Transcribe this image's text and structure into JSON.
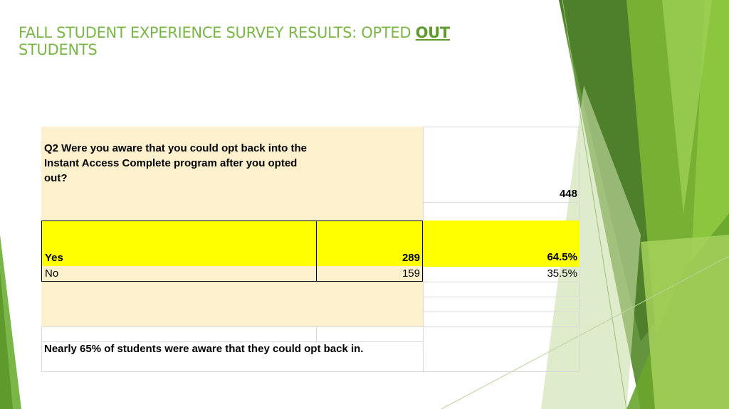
{
  "slide": {
    "title_prefix": "FALL STUDENT EXPERIENCE SURVEY RESULTS: OPTED ",
    "title_emphasis": "OUT",
    "title_suffix": "STUDENTS"
  },
  "table": {
    "question": "Q2 Were you aware that you could opt back into the Instant Access Complete program after you opted out?",
    "total": "448",
    "rows": [
      {
        "label": "Yes",
        "count": "289",
        "percent": "64.5%"
      },
      {
        "label": "No",
        "count": "159",
        "percent": "35.5%"
      }
    ],
    "conclusion": "Nearly 65% of students were aware that they could opt back in."
  },
  "colors": {
    "accent_green": "#7ab648",
    "dark_green": "#4f8a2a",
    "beige_fill": "#fdf0cc",
    "highlight_yellow": "#ffff00"
  }
}
